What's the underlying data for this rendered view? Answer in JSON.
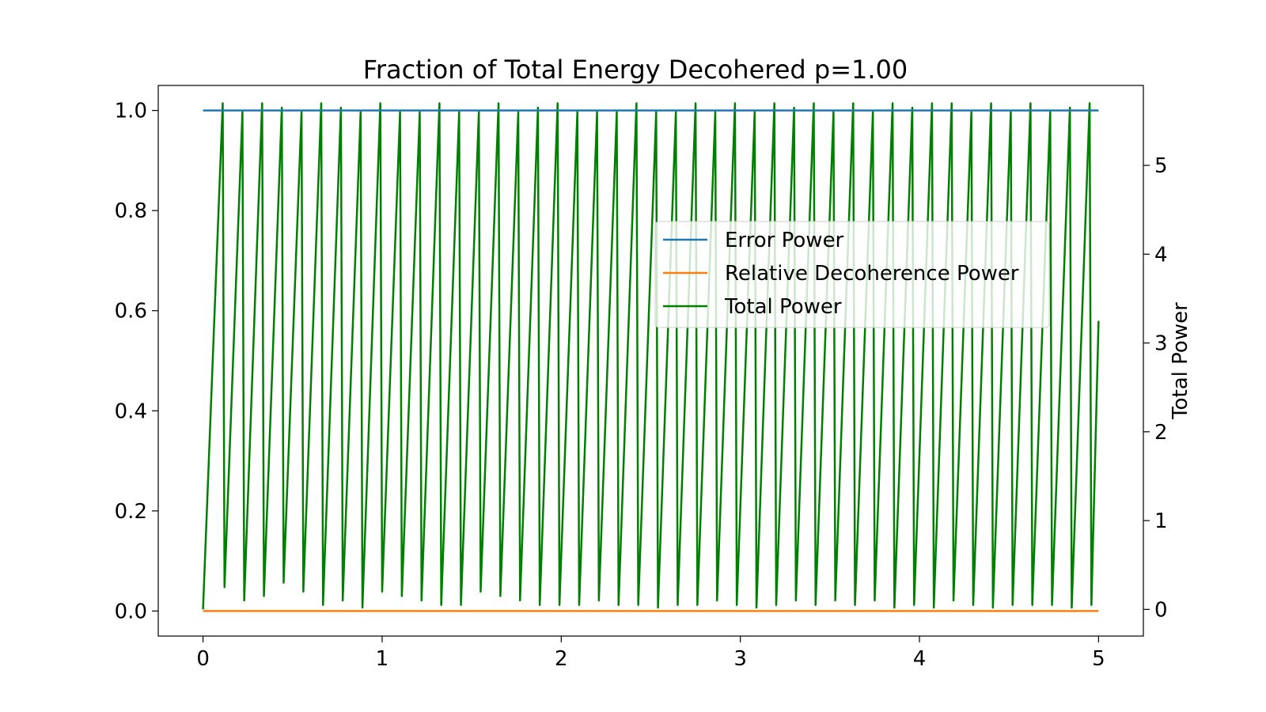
{
  "chart_data": {
    "type": "line",
    "title": "Fraction of Total Energy Decohered p=1.00",
    "xlabel": "",
    "ylabel": "",
    "y2label": "Total Power",
    "xlim": [
      -0.25,
      5.25
    ],
    "ylim": [
      -0.05,
      1.05
    ],
    "y2lim": [
      -0.3,
      5.9
    ],
    "x_ticks": [
      0,
      1,
      2,
      3,
      4,
      5
    ],
    "x_tick_labels": [
      "0",
      "1",
      "2",
      "3",
      "4",
      "5"
    ],
    "y_ticks": [
      0.0,
      0.2,
      0.4,
      0.6,
      0.8,
      1.0
    ],
    "y_tick_labels": [
      "0.0",
      "0.2",
      "0.4",
      "0.6",
      "0.8",
      "1.0"
    ],
    "y2_ticks": [
      0,
      1,
      2,
      3,
      4,
      5
    ],
    "y2_tick_labels": [
      "0",
      "1",
      "2",
      "3",
      "4",
      "5"
    ],
    "grid": false,
    "legend_position": "center-right",
    "series": [
      {
        "name": "Error Power",
        "axis": "left",
        "color": "#1f77b4",
        "x": [
          0,
          5
        ],
        "y": [
          1.0,
          1.0
        ]
      },
      {
        "name": "Relative Decoherence Power",
        "axis": "left",
        "color": "#ff7f0e",
        "x": [
          0,
          5
        ],
        "y": [
          0.0,
          0.0
        ]
      },
      {
        "name": "Total Power",
        "axis": "right",
        "color": "#008000",
        "x": [
          0,
          0.11,
          0.12,
          0.22,
          0.23,
          0.33,
          0.34,
          0.44,
          0.45,
          0.55,
          0.56,
          0.66,
          0.67,
          0.77,
          0.78,
          0.88,
          0.89,
          0.99,
          1.0,
          1.1,
          1.11,
          1.21,
          1.22,
          1.32,
          1.33,
          1.43,
          1.44,
          1.54,
          1.55,
          1.65,
          1.66,
          1.76,
          1.77,
          1.87,
          1.88,
          1.98,
          1.99,
          2.09,
          2.1,
          2.2,
          2.21,
          2.31,
          2.32,
          2.42,
          2.43,
          2.53,
          2.54,
          2.64,
          2.65,
          2.75,
          2.76,
          2.86,
          2.87,
          2.97,
          2.98,
          3.08,
          3.09,
          3.19,
          3.2,
          3.3,
          3.31,
          3.41,
          3.42,
          3.52,
          3.53,
          3.63,
          3.64,
          3.74,
          3.75,
          3.85,
          3.86,
          3.96,
          3.97,
          4.07,
          4.08,
          4.18,
          4.19,
          4.29,
          4.3,
          4.4,
          4.41,
          4.51,
          4.52,
          4.62,
          4.63,
          4.73,
          4.74,
          4.84,
          4.85,
          4.95,
          4.96,
          5.0
        ],
        "y": [
          0.0,
          5.7,
          0.25,
          5.6,
          0.1,
          5.7,
          0.15,
          5.65,
          0.3,
          5.6,
          0.2,
          5.7,
          0.05,
          5.65,
          0.1,
          5.6,
          0.02,
          5.7,
          0.2,
          5.6,
          0.15,
          5.6,
          0.1,
          5.7,
          0.05,
          5.6,
          0.05,
          5.6,
          0.2,
          5.7,
          0.15,
          5.6,
          0.1,
          5.65,
          0.05,
          5.7,
          0.05,
          5.6,
          0.05,
          5.6,
          0.1,
          5.6,
          0.05,
          5.7,
          0.05,
          5.6,
          0.02,
          5.6,
          0.05,
          5.7,
          0.05,
          5.6,
          0.1,
          5.7,
          0.05,
          5.6,
          0.02,
          5.7,
          0.05,
          5.65,
          0.1,
          5.7,
          0.05,
          5.6,
          0.1,
          5.7,
          0.05,
          5.6,
          0.1,
          5.7,
          0.02,
          5.65,
          0.05,
          5.7,
          0.02,
          5.7,
          0.1,
          5.6,
          0.05,
          5.7,
          0.02,
          5.6,
          0.05,
          5.7,
          0.05,
          5.6,
          0.05,
          5.65,
          0.02,
          5.7,
          0.05,
          3.25
        ]
      }
    ]
  }
}
